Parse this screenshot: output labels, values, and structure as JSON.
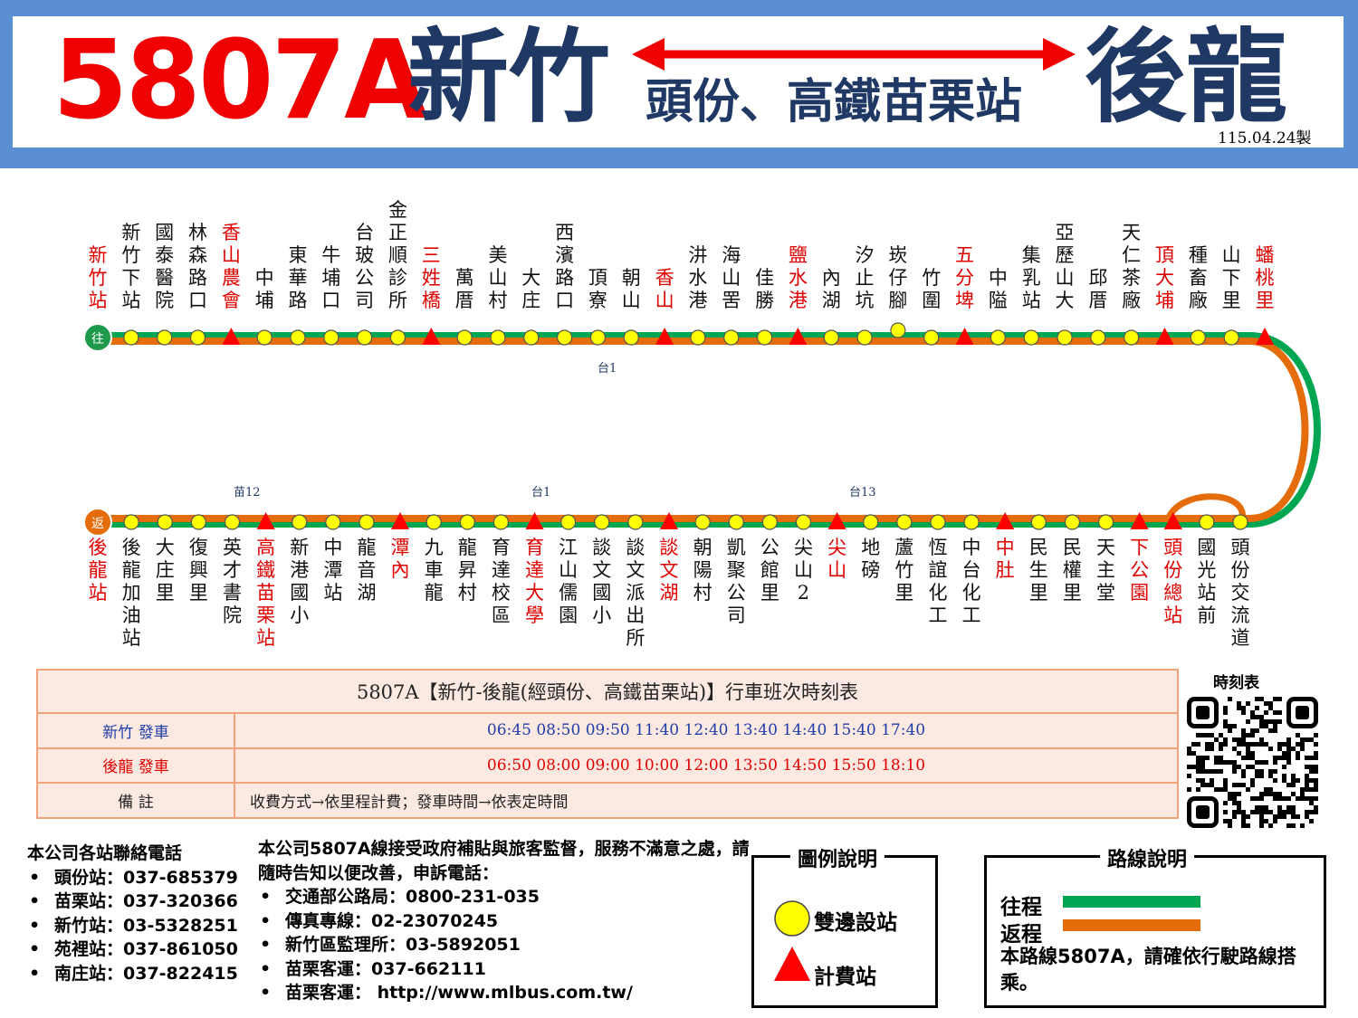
{
  "header": {
    "route_no": "5807A",
    "from": "新竹",
    "to": "後龍",
    "via": "頭份、高鐵苗栗站",
    "made_date": "115.04.24製"
  },
  "colors": {
    "outbound": "#00a651",
    "inbound": "#e46c0a",
    "station_fill": "#ffff00",
    "toll": "#ff0000",
    "header_frame": "#5b8fd3",
    "title_red": "#f00000",
    "title_navy": "#1f3864"
  },
  "route_map": {
    "start_badge": "往",
    "return_badge": "返",
    "top_stations": [
      {
        "name": "新竹站",
        "type": "terminal",
        "red": true
      },
      {
        "name": "新竹下站",
        "type": "stop",
        "red": false
      },
      {
        "name": "國泰醫院",
        "type": "stop",
        "red": false
      },
      {
        "name": "林森路口",
        "type": "stop",
        "red": false
      },
      {
        "name": "香山農會",
        "type": "toll",
        "red": true
      },
      {
        "name": "中埔",
        "type": "stop",
        "red": false
      },
      {
        "name": "東華路",
        "type": "stop",
        "red": false
      },
      {
        "name": "牛埔口",
        "type": "stop",
        "red": false
      },
      {
        "name": "台玻公司",
        "type": "stop",
        "red": false
      },
      {
        "name": "金正順診所",
        "type": "stop",
        "red": false
      },
      {
        "name": "三姓橋",
        "type": "toll",
        "red": true
      },
      {
        "name": "萬厝",
        "type": "stop",
        "red": false
      },
      {
        "name": "美山村",
        "type": "stop",
        "red": false
      },
      {
        "name": "大庄",
        "type": "stop",
        "red": false
      },
      {
        "name": "西濱路口",
        "type": "stop",
        "red": false
      },
      {
        "name": "頂寮",
        "type": "stop",
        "red": false
      },
      {
        "name": "朝山",
        "type": "stop",
        "red": false
      },
      {
        "name": "香山",
        "type": "toll",
        "red": true
      },
      {
        "name": "汫水港",
        "type": "stop",
        "red": false
      },
      {
        "name": "海山罟",
        "type": "stop",
        "red": false
      },
      {
        "name": "佳勝",
        "type": "stop",
        "red": false
      },
      {
        "name": "鹽水港",
        "type": "toll",
        "red": true
      },
      {
        "name": "內湖",
        "type": "stop",
        "red": false
      },
      {
        "name": "汐止坑",
        "type": "stop",
        "red": false
      },
      {
        "name": "崁仔腳",
        "type": "oneway",
        "red": false
      },
      {
        "name": "竹圍",
        "type": "stop",
        "red": false
      },
      {
        "name": "五分埤",
        "type": "toll",
        "red": true
      },
      {
        "name": "中隘",
        "type": "stop",
        "red": false
      },
      {
        "name": "集乳站",
        "type": "stop",
        "red": false
      },
      {
        "name": "亞歷山大",
        "type": "stop",
        "red": false
      },
      {
        "name": "邱厝",
        "type": "stop",
        "red": false
      },
      {
        "name": "天仁茶廠",
        "type": "stop",
        "red": false
      },
      {
        "name": "頂大埔",
        "type": "toll",
        "red": true
      },
      {
        "name": "種畜廠",
        "type": "stop",
        "red": false
      },
      {
        "name": "山下里",
        "type": "stop",
        "red": false
      },
      {
        "name": "蟠桃里",
        "type": "toll",
        "red": true
      }
    ],
    "bottom_stations": [
      {
        "name": "後龍站",
        "type": "terminal",
        "red": true
      },
      {
        "name": "後龍加油站",
        "type": "stop",
        "red": false
      },
      {
        "name": "大庄里",
        "type": "stop",
        "red": false
      },
      {
        "name": "復興里",
        "type": "stop",
        "red": false
      },
      {
        "name": "英才書院",
        "type": "stop",
        "red": false
      },
      {
        "name": "高鐵苗栗站",
        "type": "toll",
        "red": true
      },
      {
        "name": "新港國小",
        "type": "stop",
        "red": false
      },
      {
        "name": "中潭站",
        "type": "stop",
        "red": false
      },
      {
        "name": "龍音湖",
        "type": "stop",
        "red": false
      },
      {
        "name": "潭內",
        "type": "toll",
        "red": true
      },
      {
        "name": "九車龍",
        "type": "stop",
        "red": false
      },
      {
        "name": "龍昇村",
        "type": "stop",
        "red": false
      },
      {
        "name": "育達校區",
        "type": "stop",
        "red": false
      },
      {
        "name": "育達大學",
        "type": "toll",
        "red": true
      },
      {
        "name": "江山儒園",
        "type": "stop",
        "red": false
      },
      {
        "name": "談文國小",
        "type": "stop",
        "red": false
      },
      {
        "name": "談文派出所",
        "type": "stop",
        "red": false
      },
      {
        "name": "談文湖",
        "type": "toll",
        "red": true
      },
      {
        "name": "朝陽村",
        "type": "stop",
        "red": false
      },
      {
        "name": "凱聚公司",
        "type": "stop",
        "red": false
      },
      {
        "name": "公館里",
        "type": "stop",
        "red": false
      },
      {
        "name": "尖山2",
        "type": "stop",
        "red": false
      },
      {
        "name": "尖山",
        "type": "toll",
        "red": true
      },
      {
        "name": "地磅",
        "type": "stop",
        "red": false
      },
      {
        "name": "蘆竹里",
        "type": "stop",
        "red": false
      },
      {
        "name": "恆誼化工",
        "type": "stop",
        "red": false
      },
      {
        "name": "中台化工",
        "type": "stop",
        "red": false
      },
      {
        "name": "中肚",
        "type": "toll",
        "red": true
      },
      {
        "name": "民生里",
        "type": "stop",
        "red": false
      },
      {
        "name": "民權里",
        "type": "stop",
        "red": false
      },
      {
        "name": "天主堂",
        "type": "stop",
        "red": false
      },
      {
        "name": "下公園",
        "type": "toll",
        "red": true
      },
      {
        "name": "頭份總站",
        "type": "toll",
        "red": true
      },
      {
        "name": "國光站前",
        "type": "stop",
        "red": false
      },
      {
        "name": "頭份交流道",
        "type": "stop",
        "red": false
      }
    ],
    "road_labels": {
      "top": "台1",
      "bottom_left": "苗12",
      "bottom_mid": "台1",
      "bottom_right": "台13"
    }
  },
  "timetable": {
    "title": "5807A【新竹-後龍(經頭份、高鐵苗栗站)】行車班次時刻表",
    "rows": [
      {
        "label": "新竹 發車",
        "times": "06:45  08:50  09:50   11:40  12:40  13:40   14:40  15:40   17:40",
        "color": "#1f3da8"
      },
      {
        "label": "後龍 發車",
        "times": "06:50  08:00  09:00  10:00  12:00  13:50  14:50  15:50  18:10",
        "color": "#e00000"
      },
      {
        "label": "備  註",
        "times": "收費方式→依里程計費；發車時間→依表定時間",
        "color": "#222222"
      }
    ],
    "qr_label": "時刻表"
  },
  "contacts": {
    "title": "本公司各站聯絡電話",
    "items": [
      "頭份站：037-685379",
      "苗栗站：037-320366",
      "新竹站：03-5328251",
      "苑裡站：037-861050",
      "南庄站：037-822415"
    ]
  },
  "notice": {
    "text": "本公司5807A線接受政府補貼與旅客監督，服務不滿意之處，請隨時告知以便改善，申訴電話：",
    "items": [
      "交通部公路局：0800-231-035",
      "傳真專線：02-23070245",
      "新竹區監理所：03-5892051",
      "苗栗客運：037-662111",
      "苗栗客運： http://www.mlbus.com.tw/"
    ]
  },
  "legend": {
    "title": "圖例說明",
    "two_way": "雙邊設站",
    "toll": "計費站"
  },
  "route_info": {
    "title": "路線說明",
    "outbound": "往程",
    "inbound": "返程",
    "note": "本路線5807A，請確依行駛路線搭乘。"
  }
}
